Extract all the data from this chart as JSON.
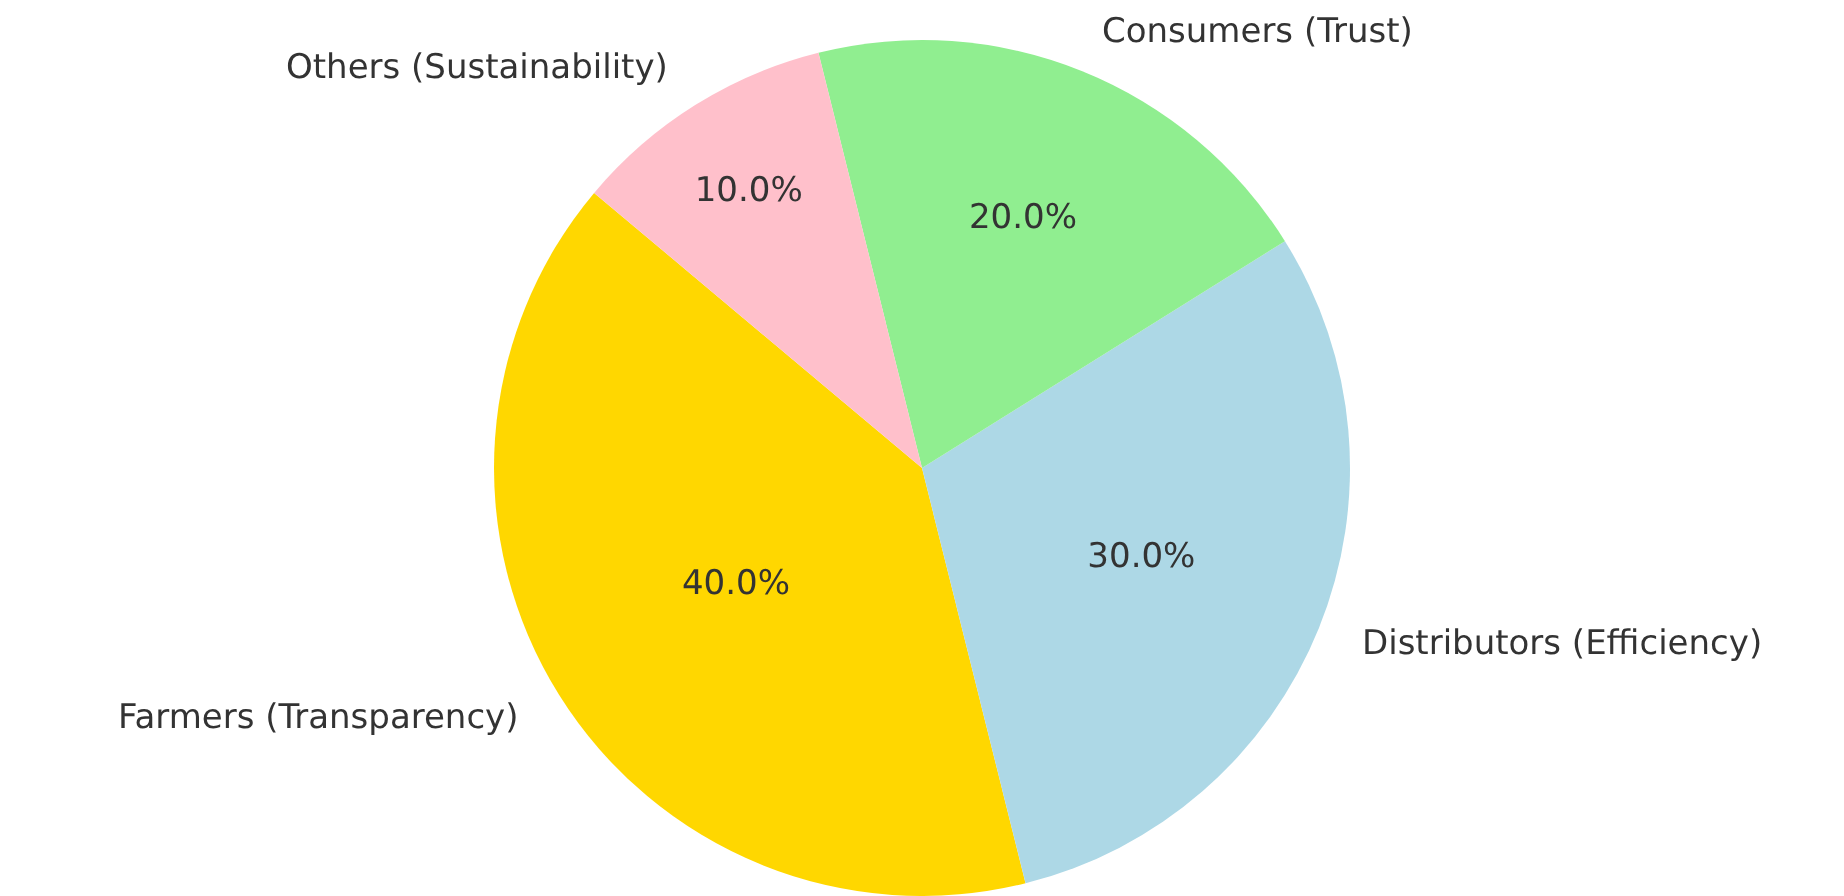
{
  "chart_data": {
    "type": "pie",
    "categories": [
      "Farmers (Transparency)",
      "Distributors (Efficiency)",
      "Consumers (Trust)",
      "Others (Sustainability)"
    ],
    "values": [
      40,
      30,
      20,
      10
    ],
    "colors": [
      "#ffd700",
      "#add8e6",
      "#90ee90",
      "#ffc0cb"
    ],
    "value_labels": [
      "40.0%",
      "30.0%",
      "20.0%",
      "10.0%"
    ]
  }
}
